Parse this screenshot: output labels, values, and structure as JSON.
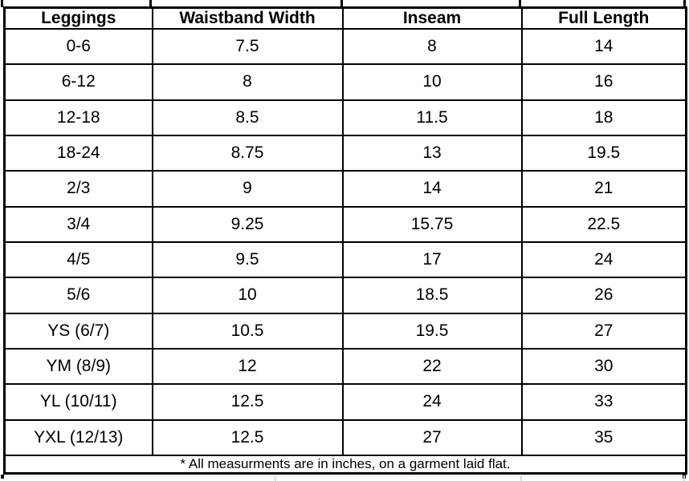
{
  "table": {
    "columns": [
      "Leggings",
      "Waistband Width",
      "Inseam",
      "Full Length"
    ],
    "rows": [
      [
        "0-6",
        "7.5",
        "8",
        "14"
      ],
      [
        "6-12",
        "8",
        "10",
        "16"
      ],
      [
        "12-18",
        "8.5",
        "11.5",
        "18"
      ],
      [
        "18-24",
        "8.75",
        "13",
        "19.5"
      ],
      [
        "2/3",
        "9",
        "14",
        "21"
      ],
      [
        "3/4",
        "9.25",
        "15.75",
        "22.5"
      ],
      [
        "4/5",
        "9.5",
        "17",
        "24"
      ],
      [
        "5/6",
        "10",
        "18.5",
        "26"
      ],
      [
        "YS (6/7)",
        "10.5",
        "19.5",
        "27"
      ],
      [
        "YM (8/9)",
        "12",
        "22",
        "30"
      ],
      [
        "YL (10/11)",
        "12.5",
        "24",
        "33"
      ],
      [
        "YXL (12/13)",
        "12.5",
        "27",
        "35"
      ]
    ],
    "footnote": "* All measurments are in inches, on a garment laid flat."
  },
  "colors": {
    "border": "#000000",
    "background": "#ffffff",
    "gridline": "#d9d9d9",
    "text": "#000000"
  }
}
